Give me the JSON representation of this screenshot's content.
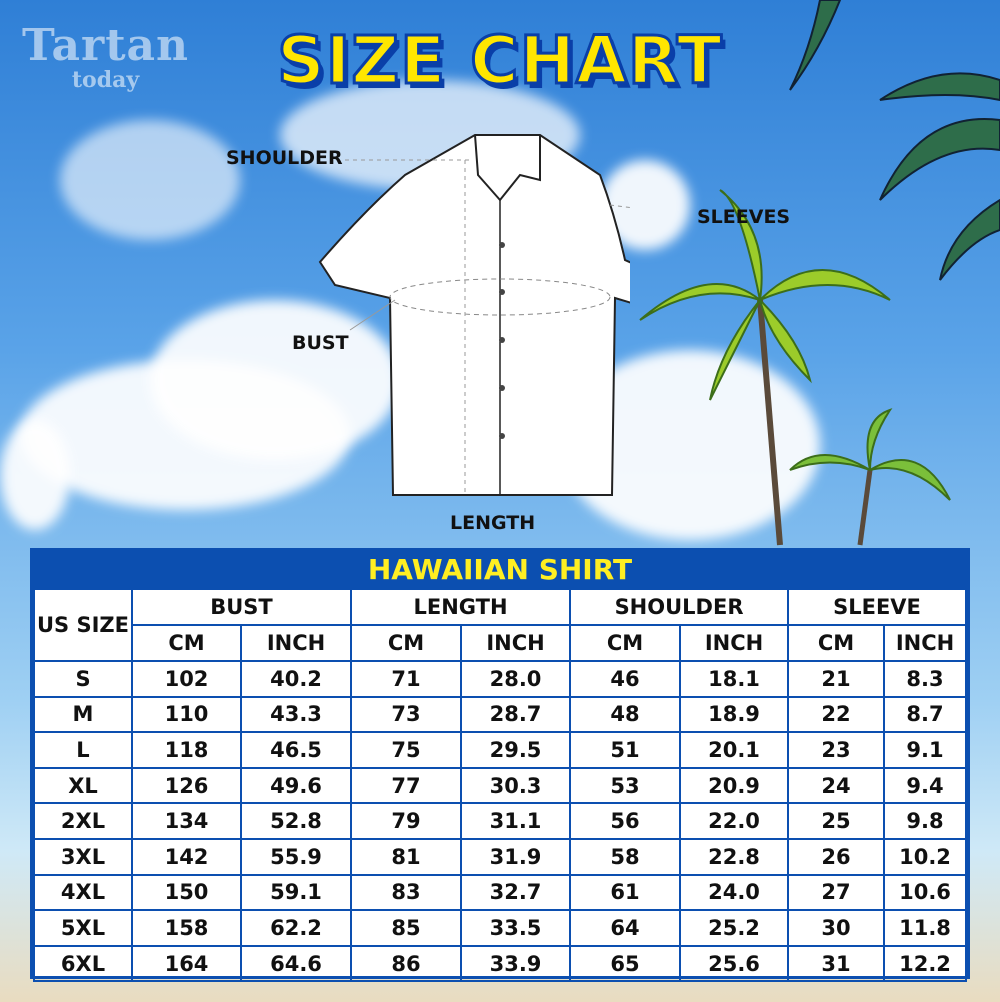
{
  "logo": {
    "line1": "Tartan",
    "line2": "today"
  },
  "title": "SIZE CHART",
  "diagram_labels": {
    "shoulder": "SHOULDER",
    "sleeves": "SLEEVES",
    "bust": "BUST",
    "length": "LENGTH"
  },
  "table": {
    "title": "HAWAIIAN SHIRT",
    "size_header": "US SIZE",
    "groups": [
      "BUST",
      "LENGTH",
      "SHOULDER",
      "SLEEVE"
    ],
    "units": [
      "CM",
      "INCH",
      "CM",
      "INCH",
      "CM",
      "INCH",
      "CM",
      "INCH"
    ],
    "rows": [
      [
        "S",
        "102",
        "40.2",
        "71",
        "28.0",
        "46",
        "18.1",
        "21",
        "8.3"
      ],
      [
        "M",
        "110",
        "43.3",
        "73",
        "28.7",
        "48",
        "18.9",
        "22",
        "8.7"
      ],
      [
        "L",
        "118",
        "46.5",
        "75",
        "29.5",
        "51",
        "20.1",
        "23",
        "9.1"
      ],
      [
        "XL",
        "126",
        "49.6",
        "77",
        "30.3",
        "53",
        "20.9",
        "24",
        "9.4"
      ],
      [
        "2XL",
        "134",
        "52.8",
        "79",
        "31.1",
        "56",
        "22.0",
        "25",
        "9.8"
      ],
      [
        "3XL",
        "142",
        "55.9",
        "81",
        "31.9",
        "58",
        "22.8",
        "26",
        "10.2"
      ],
      [
        "4XL",
        "150",
        "59.1",
        "83",
        "32.7",
        "61",
        "24.0",
        "27",
        "10.6"
      ],
      [
        "5XL",
        "158",
        "62.2",
        "85",
        "33.5",
        "64",
        "25.2",
        "30",
        "11.8"
      ],
      [
        "6XL",
        "164",
        "64.6",
        "86",
        "33.9",
        "65",
        "25.6",
        "31",
        "12.2"
      ]
    ]
  },
  "colors": {
    "table_blue": "#0c4fb0",
    "title_yellow": "#ffe600"
  }
}
